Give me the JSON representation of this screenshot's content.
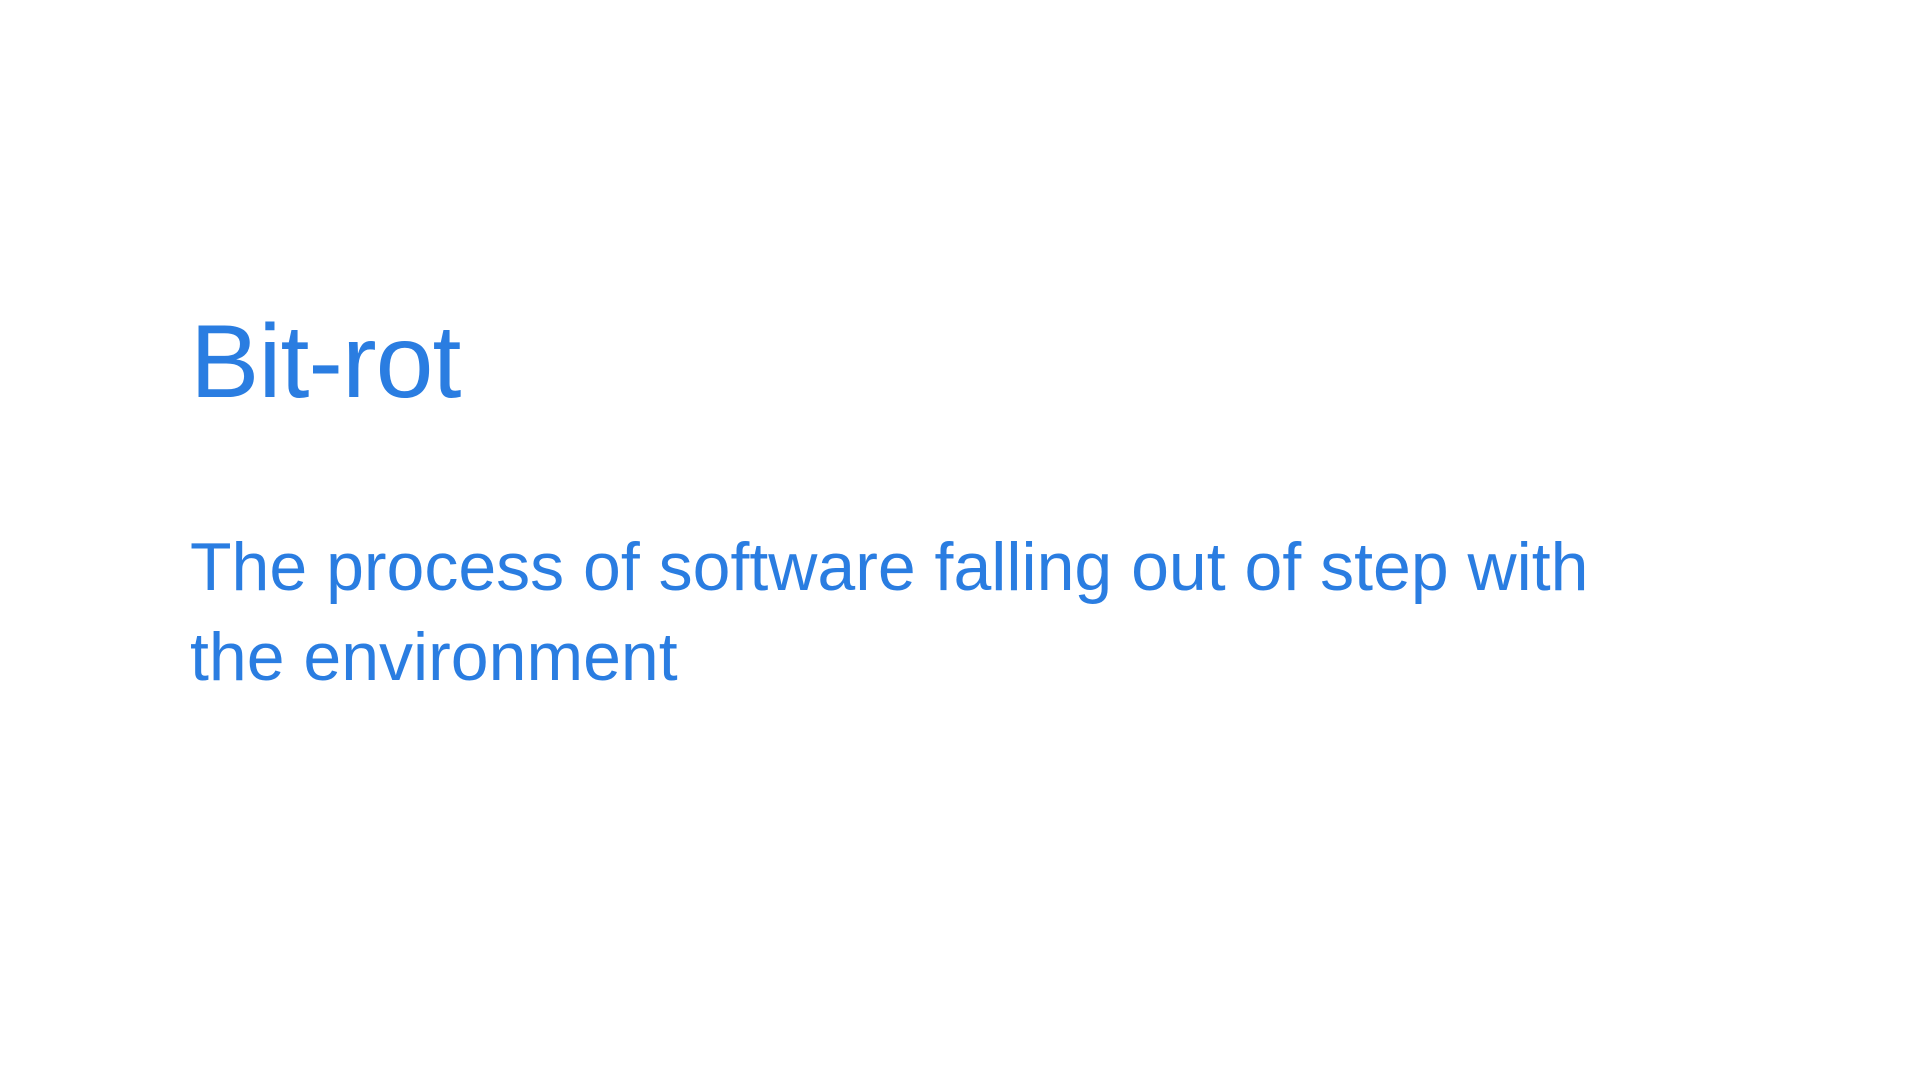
{
  "colors": {
    "background": "#ffffff",
    "accent_text": "#2a7de1"
  },
  "slide": {
    "title": "Bit-rot",
    "definition_line_1": "The process of software falling out of step with",
    "definition_line_2": "the environment"
  }
}
